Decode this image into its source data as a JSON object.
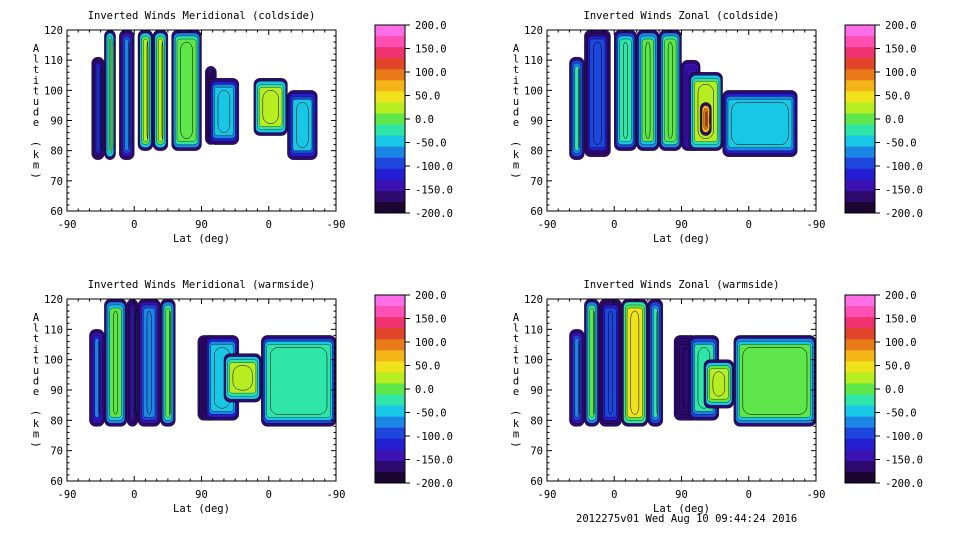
{
  "footer": "2012275v01 Wed Aug 10 09:44:24 2016",
  "colorbar": {
    "ticks": [
      "200.0",
      "150.0",
      "100.0",
      "50.0",
      "0.0",
      "-50.0",
      "-100.0",
      "-150.0",
      "-200.0"
    ],
    "colors": [
      "#ff6ee6",
      "#ff4fb4",
      "#f0336e",
      "#e2452a",
      "#e87a18",
      "#f5b417",
      "#f0e21b",
      "#b6ee22",
      "#5ee64a",
      "#2fe6a8",
      "#18c7e6",
      "#1c86e6",
      "#1c46dc",
      "#241ed2",
      "#3a12b4",
      "#2e0a6e",
      "#1a0630"
    ]
  },
  "chart_data": [
    {
      "type": "heatmap",
      "title": "Inverted Winds Meridional (coldside)",
      "xlabel": "Lat (deg)",
      "ylabel": "Altitude (km)",
      "x_ticks": [
        "-90",
        "0",
        "90",
        "0",
        "-90"
      ],
      "y_ticks": [
        "60",
        "70",
        "80",
        "90",
        "100",
        "110",
        "120"
      ],
      "ylim": [
        60,
        120
      ],
      "zlim": [
        -200,
        200
      ],
      "value_unit": "wind",
      "cells": [
        {
          "lat_span": [
            -57,
            -40
          ],
          "alt_span": [
            77,
            111
          ],
          "level": -90
        },
        {
          "lat_span": [
            -40,
            -25
          ],
          "alt_span": [
            77,
            120
          ],
          "level": 20
        },
        {
          "lat_span": [
            -20,
            0
          ],
          "alt_span": [
            77,
            120
          ],
          "level": -70
        },
        {
          "lat_span": [
            5,
            25
          ],
          "alt_span": [
            80,
            120
          ],
          "level": 25
        },
        {
          "lat_span": [
            25,
            45
          ],
          "alt_span": [
            80,
            120
          ],
          "level": 30
        },
        {
          "lat_span": [
            50,
            90
          ],
          "alt_span": [
            80,
            120
          ],
          "level": 0
        },
        {
          "lat_span": [
            110,
            85
          ],
          "alt_span": [
            82,
            108
          ],
          "level": -170
        },
        {
          "lat_span": [
            80,
            40
          ],
          "alt_span": [
            82,
            104
          ],
          "level": -40
        },
        {
          "lat_span": [
            20,
            -25
          ],
          "alt_span": [
            85,
            104
          ],
          "level": 20
        },
        {
          "lat_span": [
            -25,
            -65
          ],
          "alt_span": [
            77,
            100
          ],
          "level": -50
        }
      ]
    },
    {
      "type": "heatmap",
      "title": "Inverted Winds Zonal (coldside)",
      "xlabel": "Lat (deg)",
      "ylabel": "Altitude (km)",
      "x_ticks": [
        "-90",
        "0",
        "90",
        "0",
        "-90"
      ],
      "y_ticks": [
        "60",
        "70",
        "80",
        "90",
        "100",
        "110",
        "120"
      ],
      "ylim": [
        60,
        120
      ],
      "zlim": [
        -200,
        200
      ],
      "cells": [
        {
          "lat_span": [
            -60,
            -40
          ],
          "alt_span": [
            77,
            111
          ],
          "level": -30
        },
        {
          "lat_span": [
            -40,
            -5
          ],
          "alt_span": [
            78,
            120
          ],
          "level": -90
        },
        {
          "lat_span": [
            0,
            30
          ],
          "alt_span": [
            80,
            120
          ],
          "level": -20
        },
        {
          "lat_span": [
            30,
            60
          ],
          "alt_span": [
            80,
            120
          ],
          "level": -10
        },
        {
          "lat_span": [
            60,
            90
          ],
          "alt_span": [
            80,
            120
          ],
          "level": 0
        },
        {
          "lat_span": [
            115,
            90
          ],
          "alt_span": [
            80,
            110
          ],
          "level": -150
        },
        {
          "lat_span": [
            80,
            35
          ],
          "alt_span": [
            80,
            106
          ],
          "level": 20
        },
        {
          "lat_span": [
            65,
            50
          ],
          "alt_span": [
            85,
            96
          ],
          "level": 140
        },
        {
          "lat_span": [
            35,
            -65
          ],
          "alt_span": [
            78,
            100
          ],
          "level": -40
        }
      ]
    },
    {
      "type": "heatmap",
      "title": "Inverted Winds Meridional (warmside)",
      "xlabel": "Lat (deg)",
      "ylabel": "Altitude (km)",
      "x_ticks": [
        "-90",
        "0",
        "90",
        "0",
        "-90"
      ],
      "y_ticks": [
        "60",
        "70",
        "80",
        "90",
        "100",
        "110",
        "120"
      ],
      "ylim": [
        60,
        120
      ],
      "zlim": [
        -200,
        200
      ],
      "cells": [
        {
          "lat_span": [
            -60,
            -40
          ],
          "alt_span": [
            78,
            110
          ],
          "level": -80
        },
        {
          "lat_span": [
            -40,
            -10
          ],
          "alt_span": [
            78,
            120
          ],
          "level": -10
        },
        {
          "lat_span": [
            -10,
            5
          ],
          "alt_span": [
            78,
            120
          ],
          "level": -100
        },
        {
          "lat_span": [
            5,
            35
          ],
          "alt_span": [
            78,
            120
          ],
          "level": -60
        },
        {
          "lat_span": [
            35,
            55
          ],
          "alt_span": [
            78,
            120
          ],
          "level": 0
        },
        {
          "lat_span": [
            110,
            95
          ],
          "alt_span": [
            80,
            108
          ],
          "level": -160
        },
        {
          "lat_span": [
            95,
            40
          ],
          "alt_span": [
            80,
            108
          ],
          "level": -40
        },
        {
          "lat_span": [
            60,
            10
          ],
          "alt_span": [
            86,
            102
          ],
          "level": 20
        },
        {
          "lat_span": [
            10,
            -90
          ],
          "alt_span": [
            78,
            108
          ],
          "level": -20
        }
      ]
    },
    {
      "type": "heatmap",
      "title": "Inverted Winds Zonal (warmside)",
      "xlabel": "Lat (deg)",
      "ylabel": "Altitude (km)",
      "x_ticks": [
        "-90",
        "0",
        "90",
        "0",
        "-90"
      ],
      "y_ticks": [
        "60",
        "70",
        "80",
        "90",
        "100",
        "110",
        "120"
      ],
      "ylim": [
        60,
        120
      ],
      "zlim": [
        -200,
        200
      ],
      "cells": [
        {
          "lat_span": [
            -60,
            -40
          ],
          "alt_span": [
            78,
            110
          ],
          "level": -60
        },
        {
          "lat_span": [
            -40,
            -20
          ],
          "alt_span": [
            78,
            120
          ],
          "level": 0
        },
        {
          "lat_span": [
            -20,
            10
          ],
          "alt_span": [
            78,
            120
          ],
          "level": -90
        },
        {
          "lat_span": [
            10,
            45
          ],
          "alt_span": [
            78,
            120
          ],
          "level": 40
        },
        {
          "lat_span": [
            45,
            65
          ],
          "alt_span": [
            78,
            120
          ],
          "level": -30
        },
        {
          "lat_span": [
            112,
            100
          ],
          "alt_span": [
            80,
            108
          ],
          "level": -170
        },
        {
          "lat_span": [
            100,
            40
          ],
          "alt_span": [
            80,
            108
          ],
          "level": -30
        },
        {
          "lat_span": [
            60,
            20
          ],
          "alt_span": [
            84,
            100
          ],
          "level": 30
        },
        {
          "lat_span": [
            20,
            -90
          ],
          "alt_span": [
            78,
            108
          ],
          "level": -10
        }
      ]
    }
  ]
}
